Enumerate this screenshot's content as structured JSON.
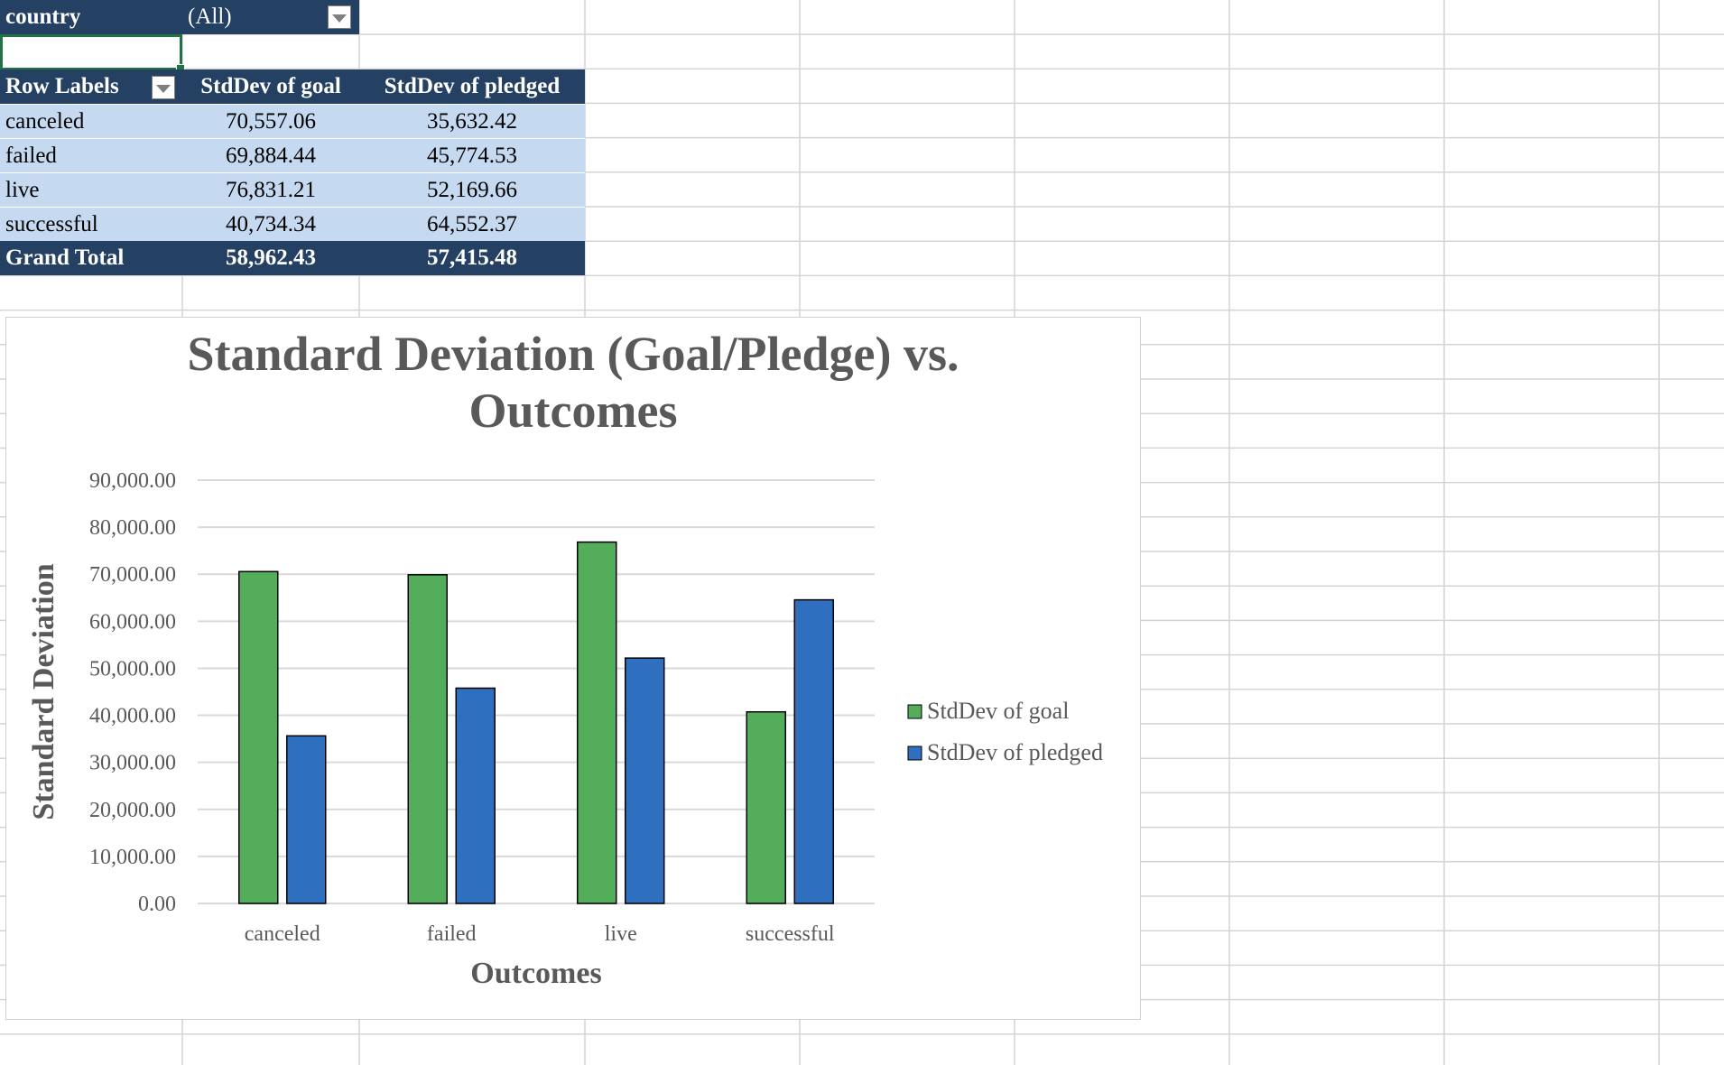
{
  "filter": {
    "label": "country",
    "value": "(All)"
  },
  "pivot": {
    "headers": [
      "Row Labels",
      "StdDev of goal",
      "StdDev of pledged"
    ],
    "rows": [
      {
        "label": "canceled",
        "goal": "70,557.06",
        "pledged": "35,632.42"
      },
      {
        "label": "failed",
        "goal": "69,884.44",
        "pledged": "45,774.53"
      },
      {
        "label": "live",
        "goal": "76,831.21",
        "pledged": "52,169.66"
      },
      {
        "label": "successful",
        "goal": "40,734.34",
        "pledged": "64,552.37"
      }
    ],
    "total": {
      "label": "Grand Total",
      "goal": "58,962.43",
      "pledged": "57,415.48"
    }
  },
  "chart_data": {
    "type": "bar",
    "title": "Standard Deviation (Goal/Pledge) vs. Outcomes",
    "title_lines": [
      "Standard Deviation (Goal/Pledge) vs.",
      "Outcomes"
    ],
    "xlabel": "Outcomes",
    "ylabel": "Standard Deviation",
    "categories": [
      "canceled",
      "failed",
      "live",
      "successful"
    ],
    "series": [
      {
        "name": "StdDev of goal",
        "values": [
          70557.06,
          69884.44,
          76831.21,
          40734.34
        ],
        "color": "#53ad5b"
      },
      {
        "name": "StdDev of pledged",
        "values": [
          35632.42,
          45774.53,
          52169.66,
          64552.37
        ],
        "color": "#2f6fbf"
      }
    ],
    "ylim": [
      0,
      90000
    ],
    "yticks": [
      "0.00",
      "10,000.00",
      "20,000.00",
      "30,000.00",
      "40,000.00",
      "50,000.00",
      "60,000.00",
      "70,000.00",
      "80,000.00",
      "90,000.00"
    ],
    "grid": true,
    "legend": "right"
  }
}
